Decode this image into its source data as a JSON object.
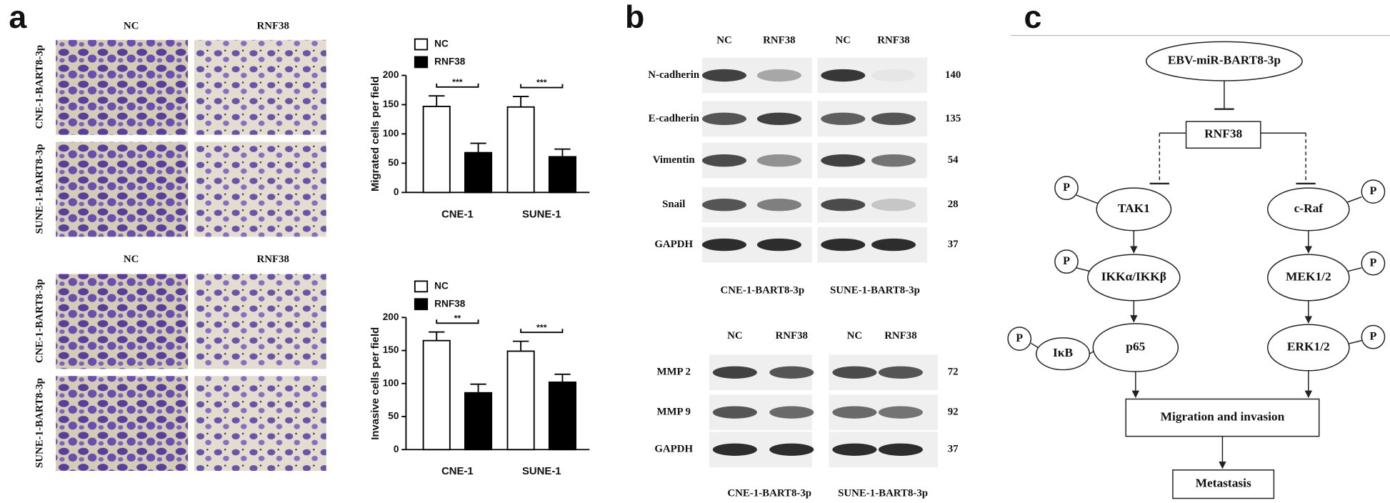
{
  "panel_labels": [
    "a",
    "b",
    "c"
  ],
  "migration_images": {
    "columns": [
      "NC",
      "RNF38"
    ],
    "rows": [
      "CNE-1-BART8-3p",
      "SUNE-1-BART8-3p"
    ]
  },
  "invasion_images": {
    "columns": [
      "NC",
      "RNF38"
    ],
    "rows": [
      "CNE-1-BART8-3p",
      "SUNE-1-BART8-3p"
    ]
  },
  "chart_data": [
    {
      "type": "bar",
      "y_label": "Migrated cells per field",
      "categories": [
        "CNE-1",
        "SUNE-1"
      ],
      "series": [
        {
          "name": "NC",
          "color": "#ffffff",
          "values": [
            147,
            146
          ],
          "errors": [
            18,
            18
          ]
        },
        {
          "name": "RNF38",
          "color": "#000000",
          "values": [
            68,
            61
          ],
          "errors": [
            16,
            13
          ]
        }
      ],
      "significance": [
        "***",
        "***"
      ],
      "ylim": [
        0,
        200
      ],
      "yticks": [
        0,
        50,
        100,
        150,
        200
      ]
    },
    {
      "type": "bar",
      "y_label": "Invasive cells per field",
      "categories": [
        "CNE-1",
        "SUNE-1"
      ],
      "series": [
        {
          "name": "NC",
          "color": "#ffffff",
          "values": [
            165,
            149
          ],
          "errors": [
            13,
            15
          ]
        },
        {
          "name": "RNF38",
          "color": "#000000",
          "values": [
            86,
            102
          ],
          "errors": [
            13,
            12
          ]
        }
      ],
      "significance": [
        "**",
        "***"
      ],
      "ylim": [
        0,
        200
      ],
      "yticks": [
        0,
        50,
        100,
        150,
        200
      ]
    }
  ],
  "blots": [
    {
      "columns": [
        "NC",
        "RNF38",
        "NC",
        "RNF38"
      ],
      "rows": [
        {
          "label": "N-cadherin",
          "kda": 140
        },
        {
          "label": "E-cadherin",
          "kda": 135
        },
        {
          "label": "Vimentin",
          "kda": 54
        },
        {
          "label": "Snail",
          "kda": 28
        },
        {
          "label": "GAPDH",
          "kda": 37
        }
      ],
      "cell_lines": [
        "CNE-1-BART8-3p",
        "SUNE-1-BART8-3p"
      ]
    },
    {
      "columns": [
        "NC",
        "RNF38",
        "NC",
        "RNF38"
      ],
      "rows": [
        {
          "label": "MMP 2",
          "kda": 72
        },
        {
          "label": "MMP 9",
          "kda": 92
        },
        {
          "label": "GAPDH",
          "kda": 37
        }
      ],
      "cell_lines": [
        "CNE-1-BART8-3p",
        "SUNE-1-BART8-3p"
      ]
    }
  ],
  "pathway": {
    "nodes": [
      "EBV-miR-BART8-3p",
      "RNF38",
      "TAK1",
      "c-Raf",
      "IKKα/IKKβ",
      "MEK1/2",
      "IκB",
      "p65",
      "ERK1/2",
      "Migration and invasion",
      "Metastasis",
      "P",
      "P",
      "P",
      "P",
      "P",
      "P"
    ]
  }
}
